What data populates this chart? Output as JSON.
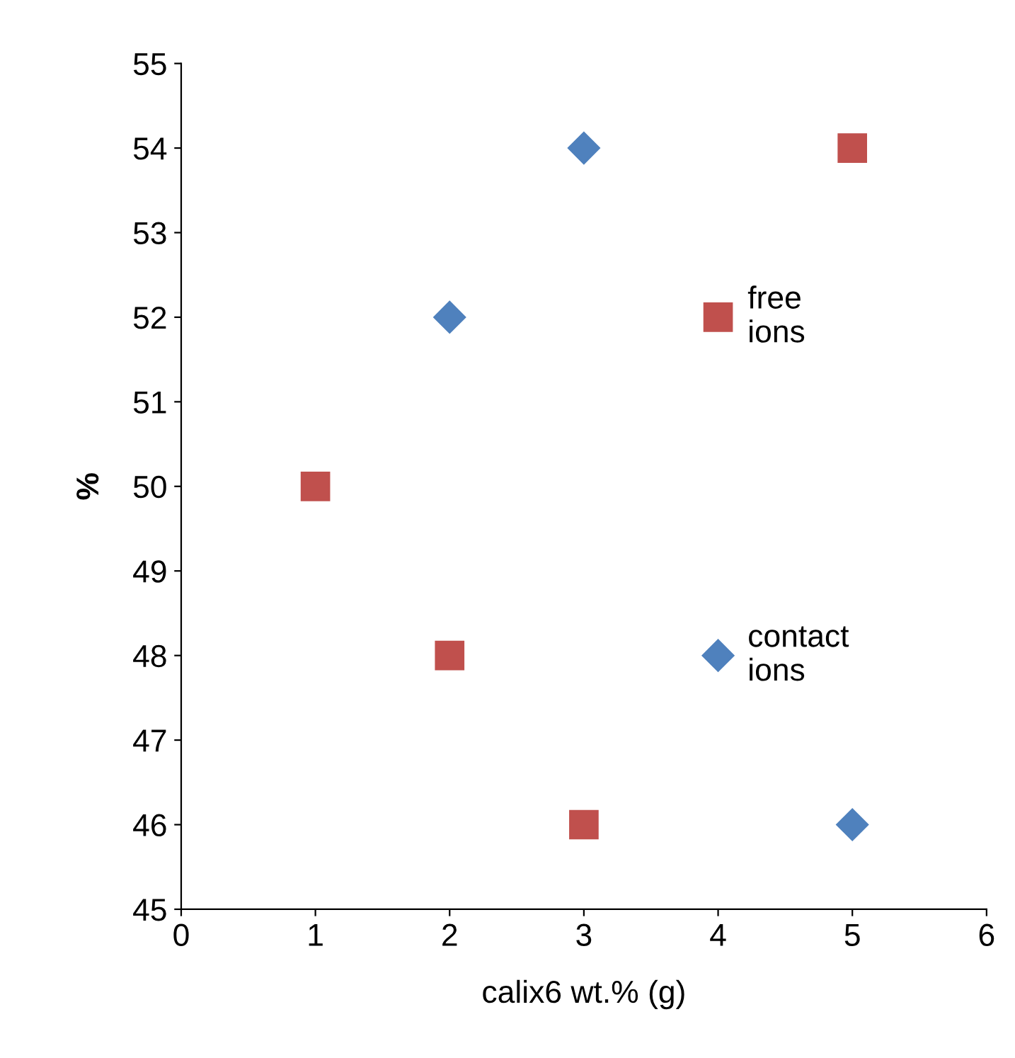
{
  "chart_data": {
    "type": "scatter",
    "xlabel": "calix6 wt.% (g)",
    "ylabel": "%",
    "xlim": [
      0,
      6
    ],
    "xticks": [
      0,
      1,
      2,
      3,
      4,
      5,
      6
    ],
    "ylim": [
      45,
      55
    ],
    "yticks": [
      45,
      46,
      47,
      48,
      49,
      50,
      51,
      52,
      53,
      54,
      55
    ],
    "grid": false,
    "legend": false,
    "series": [
      {
        "color": "#4f81bd",
        "marker": "diamond",
        "x": [
          2,
          3,
          4,
          5
        ],
        "values": [
          52,
          54,
          48,
          46
        ]
      },
      {
        "color": "#c0504d",
        "marker": "square",
        "x": [
          1,
          2,
          3,
          4,
          5
        ],
        "values": [
          50,
          48,
          46,
          52,
          54
        ]
      }
    ],
    "annotations": [
      {
        "text": "free\nions",
        "x": 4,
        "y": 52
      },
      {
        "text": "contact\nions",
        "x": 4,
        "y": 48
      }
    ]
  }
}
